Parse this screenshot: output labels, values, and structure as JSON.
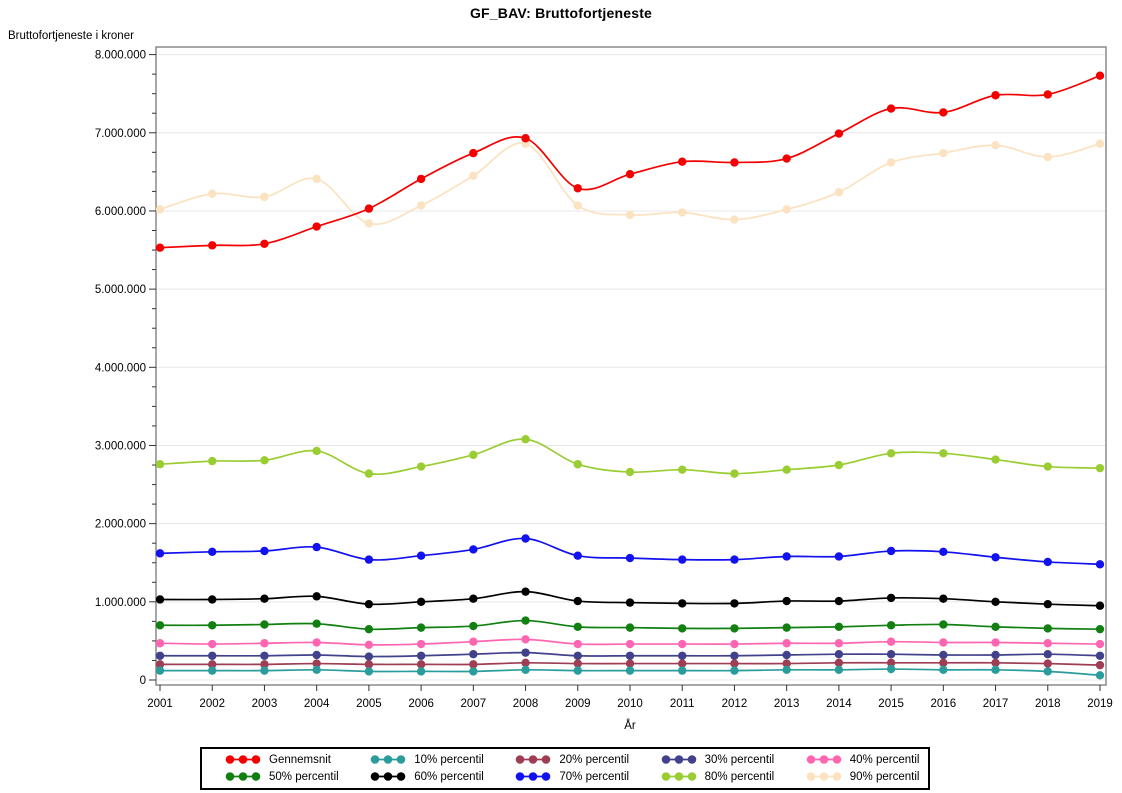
{
  "chart_data": {
    "type": "line",
    "title": "GF_BAV: Bruttofortjeneste",
    "xlabel": "År",
    "ylabel": "Bruttofortjeneste i kroner",
    "x": [
      2001,
      2002,
      2003,
      2004,
      2005,
      2006,
      2007,
      2008,
      2009,
      2010,
      2011,
      2012,
      2013,
      2014,
      2015,
      2016,
      2017,
      2018,
      2019
    ],
    "ylim": [
      0,
      8100000
    ],
    "ytick_interval": 1000000,
    "ytick_labels": [
      "0",
      "1.000.000",
      "2.000.000",
      "3.000.000",
      "4.000.000",
      "5.000.000",
      "6.000.000",
      "7.000.000",
      "8.000.000"
    ],
    "grid": "horizontal",
    "legend_position": "bottom",
    "marker": "filled-circle",
    "line_interpolation": "spline",
    "series": [
      {
        "name": "Gennemsnit",
        "color": "#f40000",
        "values": [
          5530000,
          5560000,
          5580000,
          5800000,
          6030000,
          6410000,
          6740000,
          6930000,
          6290000,
          6470000,
          6630000,
          6620000,
          6670000,
          6990000,
          7310000,
          7260000,
          7480000,
          7490000,
          7730000
        ]
      },
      {
        "name": "10% percentil",
        "color": "#2b9c9c",
        "values": [
          120000,
          120000,
          120000,
          130000,
          110000,
          110000,
          110000,
          130000,
          120000,
          120000,
          120000,
          120000,
          130000,
          130000,
          140000,
          130000,
          130000,
          110000,
          60000
        ]
      },
      {
        "name": "20% percentil",
        "color": "#9e3d53",
        "values": [
          200000,
          200000,
          200000,
          210000,
          200000,
          200000,
          200000,
          220000,
          210000,
          210000,
          210000,
          210000,
          210000,
          220000,
          220000,
          220000,
          220000,
          210000,
          190000
        ]
      },
      {
        "name": "30% percentil",
        "color": "#41418c",
        "values": [
          310000,
          310000,
          310000,
          320000,
          300000,
          310000,
          330000,
          350000,
          310000,
          310000,
          310000,
          310000,
          320000,
          330000,
          330000,
          320000,
          320000,
          330000,
          310000
        ]
      },
      {
        "name": "40% percentil",
        "color": "#ff66b2",
        "values": [
          470000,
          460000,
          470000,
          480000,
          450000,
          460000,
          490000,
          520000,
          460000,
          460000,
          460000,
          460000,
          470000,
          470000,
          490000,
          480000,
          480000,
          470000,
          460000
        ]
      },
      {
        "name": "50% percentil",
        "color": "#118011",
        "values": [
          700000,
          700000,
          710000,
          720000,
          650000,
          670000,
          690000,
          760000,
          680000,
          670000,
          660000,
          660000,
          670000,
          680000,
          700000,
          710000,
          680000,
          660000,
          650000
        ]
      },
      {
        "name": "60% percentil",
        "color": "#000000",
        "values": [
          1030000,
          1030000,
          1040000,
          1070000,
          970000,
          1000000,
          1040000,
          1130000,
          1010000,
          990000,
          980000,
          980000,
          1010000,
          1010000,
          1050000,
          1040000,
          1000000,
          970000,
          950000
        ]
      },
      {
        "name": "70% percentil",
        "color": "#1212ee",
        "values": [
          1620000,
          1640000,
          1650000,
          1700000,
          1540000,
          1590000,
          1670000,
          1810000,
          1590000,
          1560000,
          1540000,
          1540000,
          1580000,
          1580000,
          1650000,
          1640000,
          1570000,
          1510000,
          1480000
        ]
      },
      {
        "name": "80% percentil",
        "color": "#9acd32",
        "values": [
          2760000,
          2800000,
          2810000,
          2930000,
          2640000,
          2730000,
          2880000,
          3080000,
          2760000,
          2660000,
          2690000,
          2640000,
          2690000,
          2750000,
          2900000,
          2900000,
          2820000,
          2730000,
          2710000
        ]
      },
      {
        "name": "90% percentil",
        "color": "#fbe2c0",
        "values": [
          6020000,
          6220000,
          6180000,
          6410000,
          5840000,
          6070000,
          6450000,
          6860000,
          6070000,
          5950000,
          5980000,
          5890000,
          6020000,
          6240000,
          6620000,
          6740000,
          6840000,
          6690000,
          6860000
        ]
      }
    ]
  },
  "style": {
    "grid_color": "#e8e8e8",
    "frame_color": "#8a8a8a",
    "tick_color": "#333333",
    "legend_border_color": "#000000"
  }
}
